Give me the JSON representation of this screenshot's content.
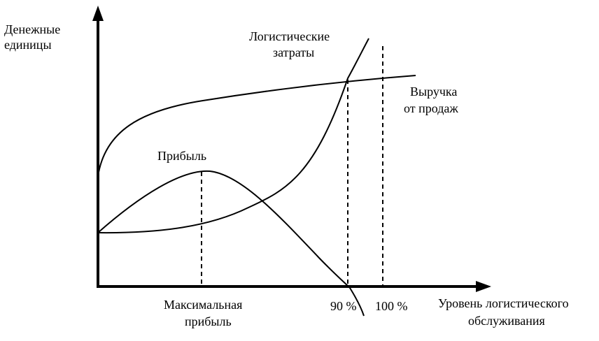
{
  "y_axis": {
    "label_line1": "Денежные",
    "label_line2": "единицы"
  },
  "x_axis": {
    "label_line1": "Уровень логистического",
    "label_line2": "обслуживания"
  },
  "curves": {
    "logistics_costs": {
      "label_line1": "Логистические",
      "label_line2": "затраты"
    },
    "revenue": {
      "label_line1": "Выручка",
      "label_line2": "от продаж"
    },
    "profit": {
      "label": "Прибыль"
    }
  },
  "markers": {
    "max_profit": {
      "label_line1": "Максимальная",
      "label_line2": "прибыль"
    },
    "level_90": "90 %",
    "level_100": "100 %"
  }
}
